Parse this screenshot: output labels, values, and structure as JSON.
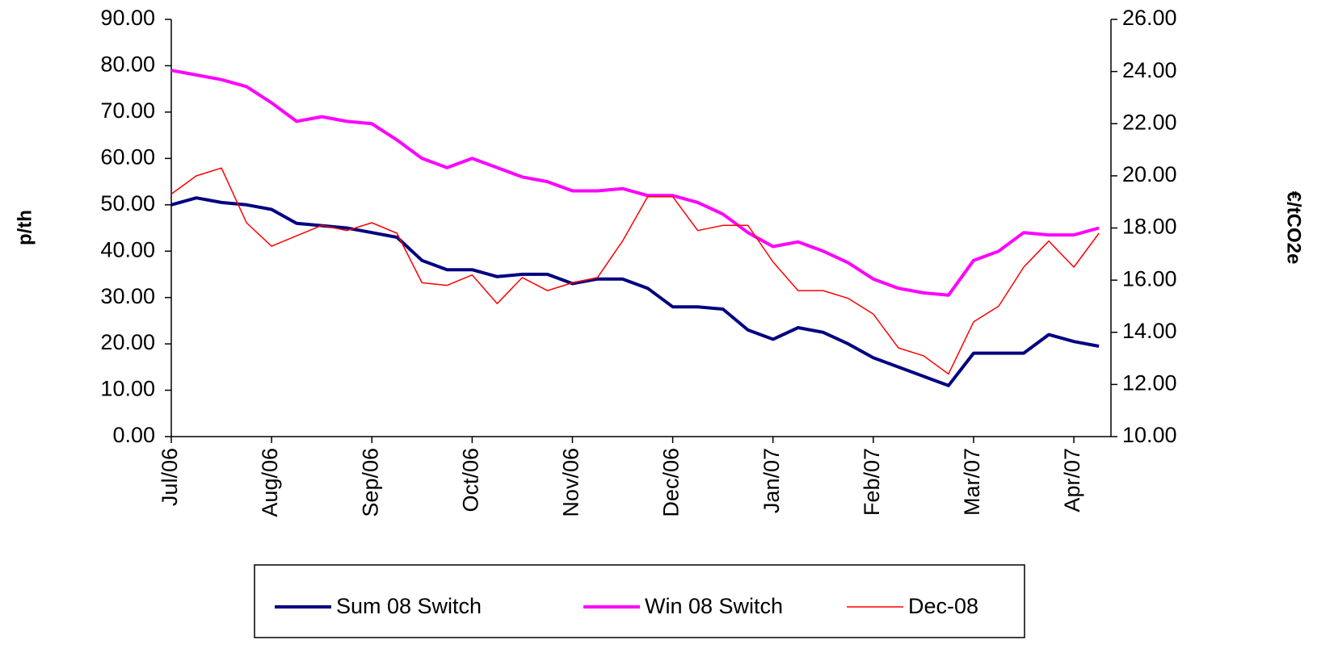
{
  "chart_data": {
    "type": "line",
    "y_label": "p/th",
    "y2_label": "€/tCO2e",
    "categories": [
      "Jul/06",
      null,
      null,
      null,
      "Aug/06",
      null,
      null,
      null,
      "Sep/06",
      null,
      null,
      null,
      "Oct/06",
      null,
      null,
      null,
      "Nov/06",
      null,
      null,
      null,
      "Dec/06",
      null,
      null,
      null,
      "Jan/07",
      null,
      null,
      null,
      "Feb/07",
      null,
      null,
      null,
      "Mar/07",
      null,
      null,
      null,
      "Apr/07",
      null
    ],
    "ylim": [
      0,
      90
    ],
    "yticks": [
      {
        "value": 0,
        "label": "0.00"
      },
      {
        "value": 10,
        "label": "10.00"
      },
      {
        "value": 20,
        "label": "20.00"
      },
      {
        "value": 30,
        "label": "30.00"
      },
      {
        "value": 40,
        "label": "40.00"
      },
      {
        "value": 50,
        "label": "50.00"
      },
      {
        "value": 60,
        "label": "60.00"
      },
      {
        "value": 70,
        "label": "70.00"
      },
      {
        "value": 80,
        "label": "80.00"
      },
      {
        "value": 90,
        "label": "90.00"
      }
    ],
    "y2lim": [
      10,
      26
    ],
    "y2ticks": [
      {
        "value": 10,
        "label": "10.00"
      },
      {
        "value": 12,
        "label": "12.00"
      },
      {
        "value": 14,
        "label": "14.00"
      },
      {
        "value": 16,
        "label": "16.00"
      },
      {
        "value": 18,
        "label": "18.00"
      },
      {
        "value": 20,
        "label": "20.00"
      },
      {
        "value": 22,
        "label": "22.00"
      },
      {
        "value": 24,
        "label": "24.00"
      },
      {
        "value": 26,
        "label": "26.00"
      }
    ],
    "series": [
      {
        "name": "Sum 08 Switch",
        "color": "#000080",
        "width": 4,
        "values": [
          50,
          51.5,
          50.5,
          50,
          49,
          46,
          45.5,
          45,
          44,
          43,
          38,
          36,
          36,
          34.5,
          35,
          35,
          33,
          34,
          34,
          32,
          28,
          28,
          27.5,
          23,
          21,
          23.5,
          22.5,
          20,
          17,
          15,
          13,
          11,
          18,
          18,
          18,
          22,
          20.5,
          19.5
        ]
      },
      {
        "name": "Win 08 Switch",
        "color": "#ff00ff",
        "width": 4,
        "values": [
          79,
          78,
          77,
          75.5,
          72,
          68,
          69,
          68,
          67.5,
          64,
          60,
          58,
          60,
          58,
          56,
          55,
          53,
          53,
          53.5,
          52,
          52,
          50.5,
          48,
          44,
          41,
          42,
          40,
          37.5,
          34,
          32,
          31,
          30.5,
          38,
          40,
          44,
          43.5,
          43.5,
          45
        ]
      },
      {
        "name": "Dec-08",
        "color": "#ff0000",
        "width": 1.5,
        "axis": "y2",
        "values": [
          19.3,
          20,
          20.3,
          18.2,
          17.3,
          17.7,
          18.1,
          17.9,
          18.2,
          17.8,
          15.9,
          15.8,
          16.2,
          15.1,
          16.1,
          15.6,
          15.9,
          16.1,
          17.5,
          19.2,
          19.2,
          17.9,
          18.1,
          18.1,
          16.7,
          15.6,
          15.6,
          15.3,
          14.7,
          13.4,
          13.1,
          12.4,
          14.4,
          15,
          16.5,
          17.5,
          16.5,
          17.8
        ]
      }
    ]
  }
}
